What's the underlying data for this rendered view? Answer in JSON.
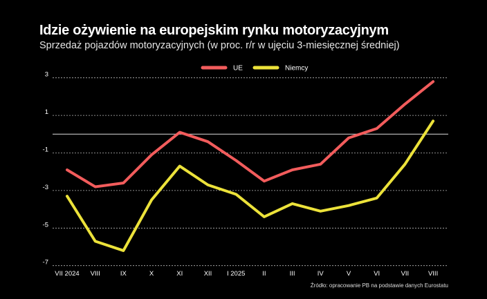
{
  "chart_data": {
    "type": "line",
    "title": "Idzie ożywienie na europejskim rynku motoryzacyjnym",
    "subtitle": "Sprzedaż pojazdów motoryzacyjnych (w proc. r/r w ujęciu 3-miesięcznej średniej)",
    "source": "Źródło: opracowanie PB na podstawie danych Eurostatu",
    "categories": [
      "VII 2024",
      "VIII",
      "IX",
      "X",
      "XI",
      "XII",
      "I 2025",
      "II",
      "III",
      "IV",
      "V",
      "VI",
      "VII",
      "VIII"
    ],
    "yticks": [
      3,
      1,
      -1,
      -3,
      -5,
      -7
    ],
    "ylim": [
      -7,
      3.3
    ],
    "grid": true,
    "legend_position": "top-center",
    "series": [
      {
        "name": "UE",
        "color": "#f25c5c",
        "values": [
          -1.9,
          -2.8,
          -2.6,
          -1.1,
          0.1,
          -0.4,
          -1.4,
          -2.5,
          -1.9,
          -1.6,
          -0.2,
          0.3,
          1.6,
          2.8
        ]
      },
      {
        "name": "Niemcy",
        "color": "#ece23a",
        "values": [
          -3.3,
          -5.7,
          -6.2,
          -3.5,
          -1.7,
          -2.7,
          -3.2,
          -4.4,
          -3.7,
          -4.1,
          -3.8,
          -3.4,
          -1.6,
          0.7
        ]
      }
    ]
  }
}
